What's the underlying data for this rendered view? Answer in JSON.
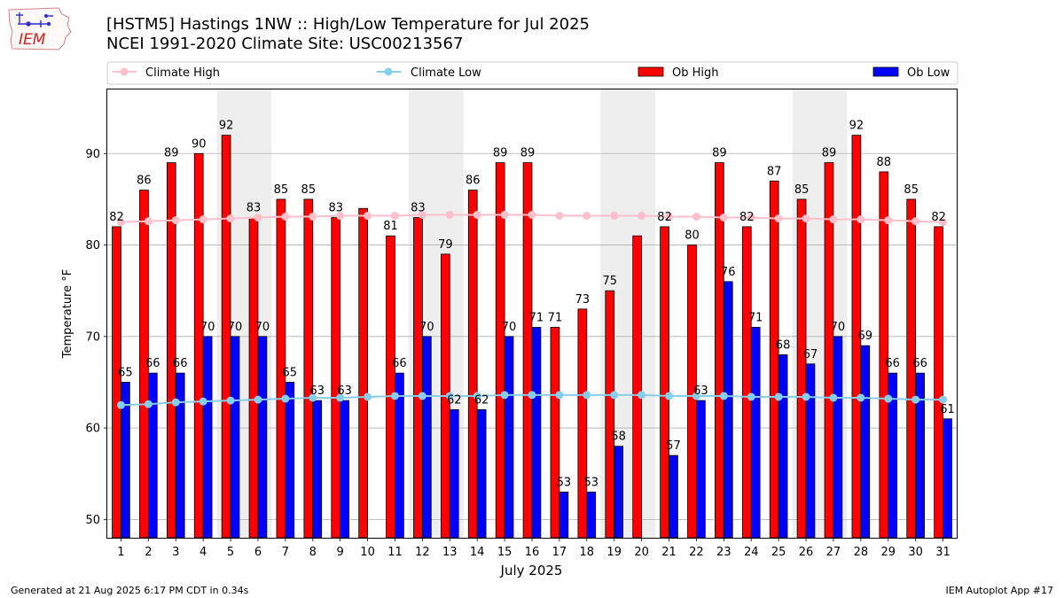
{
  "header": {
    "title_line1": "[HSTM5] Hastings 1NW :: High/Low Temperature for Jul 2025",
    "title_line2": "NCEI 1991-2020 Climate Site: USC00213567",
    "logo_text": "IEM"
  },
  "footer": {
    "generated": "Generated at 21 Aug 2025 6:17 PM CDT in 0.34s",
    "app": "IEM Autoplot App #17"
  },
  "colors": {
    "ob_high": "#ff0000",
    "ob_low": "#0000ff",
    "climate_high": "#ffc0cb",
    "climate_low": "#87ceeb",
    "weekend_shade": "#eeeeee",
    "grid": "#b0b0b0"
  },
  "chart_data": {
    "type": "bar",
    "xlabel": "July 2025",
    "ylabel": "Temperature °F",
    "ylim": [
      48,
      97
    ],
    "yticks": [
      50,
      60,
      70,
      80,
      90
    ],
    "categories": [
      "1",
      "2",
      "3",
      "4",
      "5",
      "6",
      "7",
      "8",
      "9",
      "10",
      "11",
      "12",
      "13",
      "14",
      "15",
      "16",
      "17",
      "18",
      "19",
      "20",
      "21",
      "22",
      "23",
      "24",
      "25",
      "26",
      "27",
      "28",
      "29",
      "30",
      "31"
    ],
    "shaded_day_ranges": [
      [
        5,
        6
      ],
      [
        12,
        13
      ],
      [
        19,
        20
      ],
      [
        26,
        27
      ]
    ],
    "legend": [
      "Climate High",
      "Climate Low",
      "Ob High",
      "Ob Low"
    ],
    "series": [
      {
        "name": "Ob High",
        "kind": "bar",
        "values": [
          82,
          86,
          89,
          90,
          92,
          83,
          85,
          85,
          83,
          84,
          81,
          83,
          79,
          86,
          89,
          89,
          71,
          73,
          75,
          81,
          82,
          80,
          89,
          82,
          87,
          85,
          89,
          92,
          88,
          85,
          82
        ],
        "labels": [
          82,
          86,
          89,
          90,
          92,
          83,
          85,
          85,
          83,
          null,
          81,
          83,
          79,
          86,
          89,
          89,
          71,
          73,
          75,
          null,
          82,
          80,
          89,
          82,
          87,
          85,
          89,
          92,
          88,
          85,
          82
        ]
      },
      {
        "name": "Ob Low",
        "kind": "bar",
        "values": [
          65,
          66,
          66,
          70,
          70,
          70,
          65,
          63,
          63,
          null,
          66,
          70,
          62,
          62,
          70,
          71,
          53,
          53,
          58,
          null,
          57,
          63,
          76,
          71,
          68,
          67,
          70,
          69,
          66,
          66,
          61
        ],
        "labels": [
          65,
          66,
          66,
          70,
          70,
          70,
          65,
          63,
          63,
          null,
          66,
          70,
          62,
          62,
          70,
          71,
          53,
          53,
          58,
          null,
          57,
          63,
          76,
          71,
          68,
          67,
          70,
          69,
          66,
          66,
          61
        ]
      },
      {
        "name": "Climate High",
        "kind": "line",
        "values": [
          82.5,
          82.6,
          82.7,
          82.8,
          82.9,
          83.0,
          83.1,
          83.1,
          83.2,
          83.2,
          83.2,
          83.3,
          83.3,
          83.3,
          83.3,
          83.3,
          83.2,
          83.2,
          83.2,
          83.2,
          83.1,
          83.1,
          83.0,
          83.0,
          82.9,
          82.9,
          82.8,
          82.8,
          82.7,
          82.6,
          82.5
        ]
      },
      {
        "name": "Climate Low",
        "kind": "line",
        "values": [
          62.5,
          62.6,
          62.8,
          62.9,
          63.0,
          63.1,
          63.2,
          63.3,
          63.3,
          63.4,
          63.5,
          63.5,
          63.5,
          63.5,
          63.6,
          63.6,
          63.6,
          63.6,
          63.6,
          63.6,
          63.5,
          63.5,
          63.5,
          63.4,
          63.4,
          63.4,
          63.3,
          63.3,
          63.2,
          63.1,
          63.1
        ]
      }
    ]
  }
}
